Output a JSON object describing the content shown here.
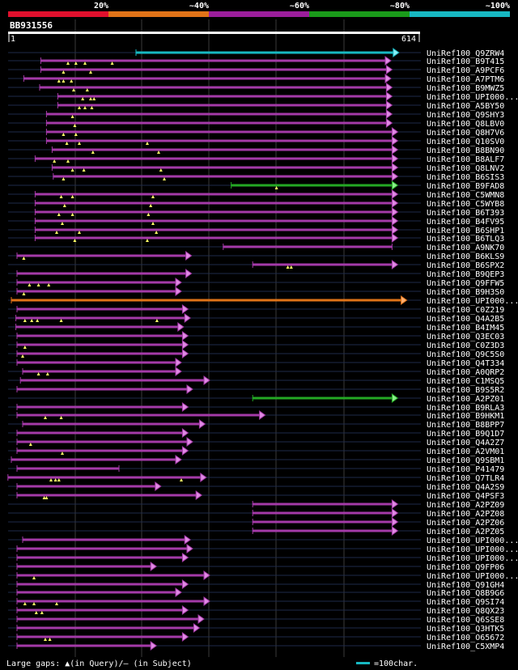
{
  "legend": {
    "pct_labels": [
      "20%",
      "~40%",
      "~60%",
      "~80%",
      "~100%"
    ],
    "colors": [
      "#e0102d",
      "#e07318",
      "#9b1e9b",
      "#1a9a1a",
      "#17b8c2"
    ]
  },
  "query": {
    "id": "BB931556",
    "start": "1",
    "end": "614",
    "length": 614
  },
  "footer": {
    "gaps_text": "Large gaps: ▲(in Query)/— (in Subject)",
    "scale_text": "=100char."
  },
  "hits": [
    {
      "name": "UniRef100_Q9ZRW4",
      "start": 240,
      "end": 694,
      "color": "cyan",
      "ins": [],
      "tail": "triangle"
    },
    {
      "name": "UniRef100_B9T415",
      "start": 72,
      "end": 680,
      "color": "purple",
      "ins": [
        120,
        134,
        150,
        198
      ],
      "tail": "triangle"
    },
    {
      "name": "UniRef100_A9PCF6",
      "start": 72,
      "end": 682,
      "color": "purple",
      "ins": [
        112,
        160
      ],
      "tail": "triangle"
    },
    {
      "name": "UniRef100_A7PTM6",
      "start": 42,
      "end": 680,
      "color": "purple",
      "ins": [
        104,
        112,
        126
      ],
      "tail": "triangle"
    },
    {
      "name": "UniRef100_B9MWZ5",
      "start": 70,
      "end": 682,
      "color": "purple",
      "ins": [
        130,
        154
      ],
      "tail": "triangle"
    },
    {
      "name": "UniRef100_UPI000...",
      "start": 102,
      "end": 682,
      "color": "purple",
      "ins": [
        146,
        160,
        166
      ],
      "tail": "triangle"
    },
    {
      "name": "UniRef100_A5BY50",
      "start": 102,
      "end": 682,
      "color": "purple",
      "ins": [
        140,
        150,
        162
      ],
      "tail": "triangle"
    },
    {
      "name": "UniRef100_Q9SHY3",
      "start": 82,
      "end": 682,
      "color": "purple",
      "ins": [
        128
      ],
      "tail": "triangle"
    },
    {
      "name": "UniRef100_Q8LBV0",
      "start": 82,
      "end": 682,
      "color": "purple",
      "ins": [
        132
      ],
      "tail": "triangle"
    },
    {
      "name": "UniRef100_Q8H7V6",
      "start": 82,
      "end": 692,
      "color": "purple",
      "ins": [
        112,
        134
      ],
      "tail": "triangle"
    },
    {
      "name": "UniRef100_Q10SV0",
      "start": 82,
      "end": 692,
      "color": "purple",
      "ins": [
        118,
        140,
        260
      ],
      "tail": "triangle"
    },
    {
      "name": "UniRef100_B8BN90",
      "start": 92,
      "end": 692,
      "color": "purple",
      "ins": [
        164,
        280
      ],
      "tail": "triangle"
    },
    {
      "name": "UniRef100_B8ALF7",
      "start": 62,
      "end": 692,
      "color": "purple",
      "ins": [
        96,
        120
      ],
      "tail": "triangle"
    },
    {
      "name": "UniRef100_Q8LNV2",
      "start": 92,
      "end": 692,
      "color": "purple",
      "ins": [
        128,
        148,
        284
      ],
      "tail": "triangle"
    },
    {
      "name": "UniRef100_B6SIS3",
      "start": 94,
      "end": 692,
      "color": "purple",
      "ins": [
        112,
        290
      ],
      "tail": "triangle"
    },
    {
      "name": "UniRef100_B9FAD8",
      "start": 408,
      "end": 692,
      "color": "green",
      "ins": [
        488
      ],
      "tail": "triangle"
    },
    {
      "name": "UniRef100_C5WMN8",
      "start": 62,
      "end": 692,
      "color": "purple",
      "ins": [
        108,
        128,
        270
      ],
      "tail": "triangle"
    },
    {
      "name": "UniRef100_C5WYB8",
      "start": 62,
      "end": 692,
      "color": "purple",
      "ins": [
        114,
        266
      ],
      "tail": "triangle"
    },
    {
      "name": "UniRef100_B6T393",
      "start": 62,
      "end": 692,
      "color": "purple",
      "ins": [
        104,
        128,
        262
      ],
      "tail": "triangle"
    },
    {
      "name": "UniRef100_B4FV95",
      "start": 62,
      "end": 692,
      "color": "purple",
      "ins": [
        110,
        270
      ],
      "tail": "triangle"
    },
    {
      "name": "UniRef100_B6SHP1",
      "start": 62,
      "end": 692,
      "color": "purple",
      "ins": [
        100,
        140,
        276
      ],
      "tail": "triangle"
    },
    {
      "name": "UniRef100_B6TLQ3",
      "start": 62,
      "end": 692,
      "color": "purple",
      "ins": [
        132,
        260
      ],
      "tail": "triangle"
    },
    {
      "name": "UniRef100_A9NK70",
      "start": 394,
      "end": 692,
      "color": "purple",
      "ins": [],
      "tail": "bar"
    },
    {
      "name": "UniRef100_B6KLS9",
      "start": 30,
      "end": 328,
      "color": "purple",
      "ins": [
        42
      ],
      "tail": "triangle"
    },
    {
      "name": "UniRef100_B6SPX2",
      "start": 446,
      "end": 692,
      "color": "purple",
      "ins": [
        508,
        514
      ],
      "tail": "triangle"
    },
    {
      "name": "UniRef100_B9QEP3",
      "start": 30,
      "end": 328,
      "color": "purple",
      "ins": [],
      "tail": "triangle"
    },
    {
      "name": "UniRef100_Q9FFW5",
      "start": 30,
      "end": 310,
      "color": "purple",
      "ins": [
        52,
        68,
        86
      ],
      "tail": "triangle"
    },
    {
      "name": "UniRef100_B9H3S0",
      "start": 30,
      "end": 310,
      "color": "purple",
      "ins": [
        42
      ],
      "tail": "triangle"
    },
    {
      "name": "UniRef100_UPI000...",
      "start": 20,
      "end": 708,
      "color": "orange",
      "ins": [],
      "tail": "triangle"
    },
    {
      "name": "UniRef100_C0Z219",
      "start": 30,
      "end": 322,
      "color": "purple",
      "ins": [],
      "tail": "triangle"
    },
    {
      "name": "UniRef100_Q4A2B5",
      "start": 28,
      "end": 326,
      "color": "purple",
      "ins": [
        44,
        56,
        66,
        108,
        277
      ],
      "tail": "triangle"
    },
    {
      "name": "UniRef100_B4IM45",
      "start": 28,
      "end": 314,
      "color": "purple",
      "ins": [],
      "tail": "triangle"
    },
    {
      "name": "UniRef100_Q3EC03",
      "start": 30,
      "end": 322,
      "color": "purple",
      "ins": [],
      "tail": "triangle"
    },
    {
      "name": "UniRef100_C0Z3D3",
      "start": 30,
      "end": 322,
      "color": "purple",
      "ins": [
        44
      ],
      "tail": "triangle"
    },
    {
      "name": "UniRef100_Q9C5S0",
      "start": 30,
      "end": 322,
      "color": "purple",
      "ins": [
        40
      ],
      "tail": "triangle"
    },
    {
      "name": "UniRef100_Q4T334",
      "start": 30,
      "end": 310,
      "color": "purple",
      "ins": [],
      "tail": "triangle"
    },
    {
      "name": "UniRef100_A0QRP2",
      "start": 40,
      "end": 310,
      "color": "purple",
      "ins": [
        68,
        84
      ],
      "tail": "triangle"
    },
    {
      "name": "UniRef100_C1MSQ5",
      "start": 36,
      "end": 360,
      "color": "purple",
      "ins": [],
      "tail": "triangle"
    },
    {
      "name": "UniRef100_B9S5R2",
      "start": 30,
      "end": 330,
      "color": "purple",
      "ins": [],
      "tail": "triangle"
    },
    {
      "name": "UniRef100_A2PZ01",
      "start": 446,
      "end": 692,
      "color": "green",
      "ins": [],
      "tail": "triangle"
    },
    {
      "name": "UniRef100_B9RLA3",
      "start": 30,
      "end": 322,
      "color": "purple",
      "ins": [],
      "tail": "triangle"
    },
    {
      "name": "UniRef100_B9HKM1",
      "start": 30,
      "end": 458,
      "color": "purple",
      "ins": [
        80,
        108
      ],
      "tail": "triangle"
    },
    {
      "name": "UniRef100_B8BPP7",
      "start": 40,
      "end": 352,
      "color": "purple",
      "ins": [],
      "tail": "triangle"
    },
    {
      "name": "UniRef100_B9Q1D7",
      "start": 30,
      "end": 322,
      "color": "purple",
      "ins": [],
      "tail": "triangle"
    },
    {
      "name": "UniRef100_Q4A2Z7",
      "start": 30,
      "end": 330,
      "color": "purple",
      "ins": [
        54
      ],
      "tail": "triangle"
    },
    {
      "name": "UniRef100_A2VM01",
      "start": 30,
      "end": 322,
      "color": "purple",
      "ins": [
        110
      ],
      "tail": "triangle"
    },
    {
      "name": "UniRef100_Q9SBM1",
      "start": 20,
      "end": 310,
      "color": "purple",
      "ins": [],
      "tail": "triangle"
    },
    {
      "name": "UniRef100_P41479",
      "start": 30,
      "end": 210,
      "color": "purple",
      "ins": [],
      "tail": "bar"
    },
    {
      "name": "UniRef100_Q7TLR4",
      "start": 14,
      "end": 354,
      "color": "purple",
      "ins": [
        90,
        98,
        104,
        320
      ],
      "tail": "triangle"
    },
    {
      "name": "UniRef100_Q4A2S9",
      "start": 30,
      "end": 274,
      "color": "purple",
      "ins": [],
      "tail": "triangle"
    },
    {
      "name": "UniRef100_Q4PSF3",
      "start": 30,
      "end": 346,
      "color": "purple",
      "ins": [
        78,
        82
      ],
      "tail": "triangle"
    },
    {
      "name": "UniRef100_A2PZ09",
      "start": 446,
      "end": 692,
      "color": "purple",
      "ins": [],
      "tail": "triangle"
    },
    {
      "name": "UniRef100_A2PZ08",
      "start": 446,
      "end": 692,
      "color": "purple",
      "ins": [],
      "tail": "triangle"
    },
    {
      "name": "UniRef100_A2PZ06",
      "start": 446,
      "end": 692,
      "color": "purple",
      "ins": [],
      "tail": "triangle"
    },
    {
      "name": "UniRef100_A2PZ05",
      "start": 446,
      "end": 692,
      "color": "purple",
      "ins": [],
      "tail": "triangle"
    },
    {
      "name": "UniRef100_UPI000...",
      "start": 40,
      "end": 326,
      "color": "purple",
      "ins": [],
      "tail": "triangle"
    },
    {
      "name": "UniRef100_UPI000...",
      "start": 30,
      "end": 330,
      "color": "purple",
      "ins": [],
      "tail": "triangle"
    },
    {
      "name": "UniRef100_UPI000...",
      "start": 30,
      "end": 322,
      "color": "purple",
      "ins": [],
      "tail": "triangle"
    },
    {
      "name": "UniRef100_Q9FP06",
      "start": 30,
      "end": 266,
      "color": "purple",
      "ins": [],
      "tail": "triangle"
    },
    {
      "name": "UniRef100_UPI000...",
      "start": 30,
      "end": 360,
      "color": "purple",
      "ins": [
        60
      ],
      "tail": "triangle"
    },
    {
      "name": "UniRef100_Q91GH4",
      "start": 30,
      "end": 322,
      "color": "purple",
      "ins": [],
      "tail": "triangle"
    },
    {
      "name": "UniRef100_Q8B9G6",
      "start": 30,
      "end": 310,
      "color": "purple",
      "ins": [],
      "tail": "triangle"
    },
    {
      "name": "UniRef100_Q9SI74",
      "start": 30,
      "end": 360,
      "color": "purple",
      "ins": [
        44,
        60,
        100
      ],
      "tail": "triangle"
    },
    {
      "name": "UniRef100_Q8QX23",
      "start": 30,
      "end": 322,
      "color": "purple",
      "ins": [
        64,
        74
      ],
      "tail": "triangle"
    },
    {
      "name": "UniRef100_Q6SSE8",
      "start": 30,
      "end": 350,
      "color": "purple",
      "ins": [],
      "tail": "triangle"
    },
    {
      "name": "UniRef100_Q3HTK5",
      "start": 30,
      "end": 342,
      "color": "purple",
      "ins": [],
      "tail": "triangle"
    },
    {
      "name": "UniRef100_O65672",
      "start": 30,
      "end": 322,
      "color": "purple",
      "ins": [
        80,
        88
      ],
      "tail": "triangle"
    },
    {
      "name": "UniRef100_C5XMP4",
      "start": 30,
      "end": 266,
      "color": "purple",
      "ins": [],
      "tail": "triangle"
    }
  ]
}
